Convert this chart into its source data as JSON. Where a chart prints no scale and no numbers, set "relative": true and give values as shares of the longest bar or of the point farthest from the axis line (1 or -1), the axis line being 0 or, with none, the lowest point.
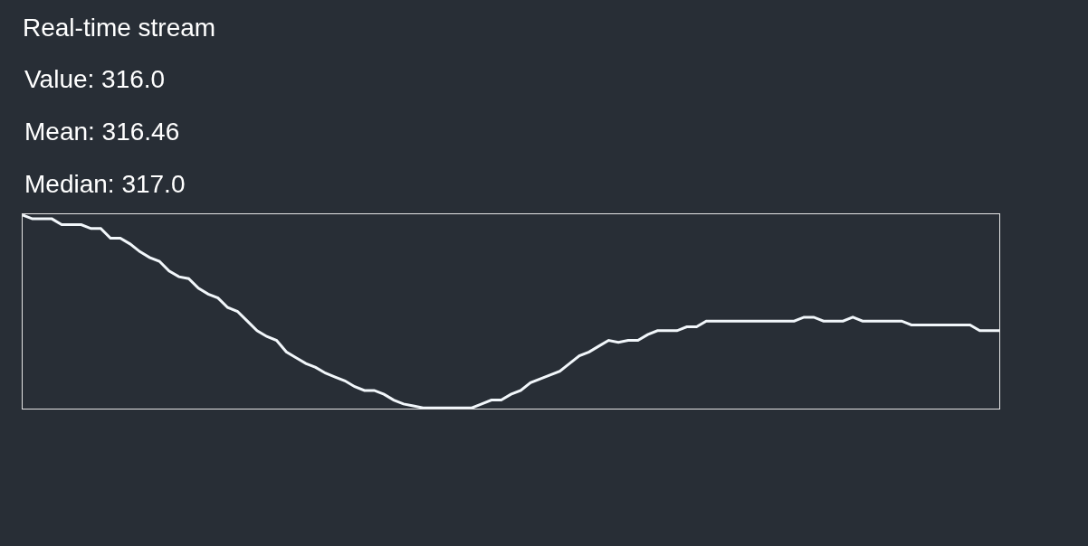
{
  "chart_data": {
    "type": "line",
    "relative": true,
    "title": "Real-time stream",
    "annotations": [
      "Value: 316.0",
      "Mean: 316.46",
      "Median: 317.0"
    ],
    "categories": [
      null,
      null,
      null,
      null,
      null,
      null,
      null,
      null,
      null,
      null,
      null,
      null,
      null,
      null,
      null,
      null,
      null,
      null,
      null,
      null,
      null,
      null,
      null,
      null,
      null,
      null,
      null,
      null,
      null,
      null,
      null,
      null,
      null,
      null,
      null,
      null,
      null,
      null,
      null,
      null,
      null,
      null,
      null,
      null,
      null,
      null,
      null,
      null,
      null,
      null,
      null,
      null,
      null,
      null,
      null,
      null,
      null,
      null,
      null,
      null,
      null,
      null,
      null,
      null,
      null,
      null,
      null,
      null,
      null,
      null,
      null,
      null,
      null,
      null,
      null,
      null,
      null,
      null,
      null,
      null,
      null,
      null,
      null,
      null,
      null,
      null,
      null,
      null,
      null,
      null,
      null,
      null,
      null,
      null,
      null,
      null,
      null,
      null,
      null,
      null,
      null
    ],
    "series": [
      {
        "color": "#f2f7fb",
        "values": [
          1.0,
          0.98,
          0.98,
          0.98,
          0.95,
          0.95,
          0.95,
          0.93,
          0.93,
          0.88,
          0.88,
          0.85,
          0.81,
          0.78,
          0.76,
          0.71,
          0.68,
          0.67,
          0.62,
          0.59,
          0.57,
          0.52,
          0.5,
          0.45,
          0.4,
          0.37,
          0.35,
          0.29,
          0.26,
          0.23,
          0.21,
          0.18,
          0.16,
          0.14,
          0.11,
          0.09,
          0.09,
          0.07,
          0.04,
          0.02,
          0.01,
          0,
          0,
          0,
          0,
          0,
          0,
          0.02,
          0.04,
          0.04,
          0.07,
          0.09,
          0.13,
          0.15,
          0.17,
          0.19,
          0.23,
          0.27,
          0.29,
          0.32,
          0.35,
          0.34,
          0.35,
          0.35,
          0.38,
          0.4,
          0.4,
          0.4,
          0.42,
          0.42,
          0.45,
          0.45,
          0.45,
          0.45,
          0.45,
          0.45,
          0.45,
          0.45,
          0.45,
          0.45,
          0.47,
          0.47,
          0.45,
          0.45,
          0.45,
          0.47,
          0.45,
          0.45,
          0.45,
          0.45,
          0.45,
          0.43,
          0.43,
          0.43,
          0.43,
          0.43,
          0.43,
          0.43,
          0.4,
          0.4,
          0.4
        ]
      }
    ],
    "grid": false,
    "marker": "none",
    "line_style": "solid"
  }
}
